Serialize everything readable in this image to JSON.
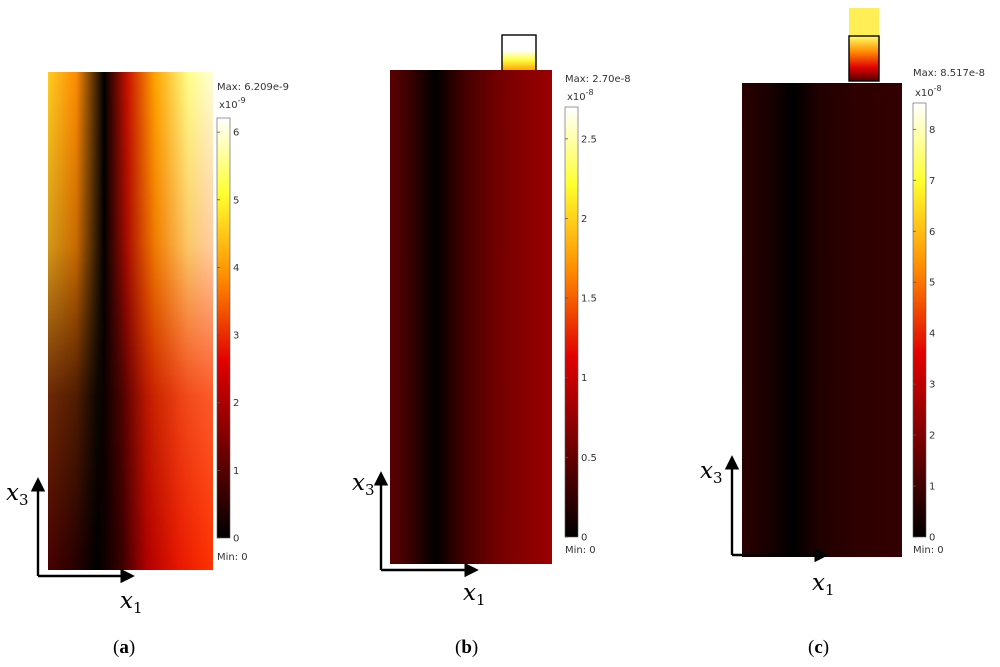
{
  "colormap": [
    "#000000",
    "#8b0000",
    "#ff2a00",
    "#ffa500",
    "#ffff33",
    "#ffffff"
  ],
  "chart_data": [
    {
      "type": "heatmap",
      "colorbar": {
        "max_label": "Max: 6.209e-9",
        "min_label": "Min: 0",
        "exponent_base": "x10",
        "exponent_power": "-9",
        "ticks": [
          "0",
          "1",
          "2",
          "3",
          "4",
          "5",
          "6"
        ],
        "range": [
          0,
          6.209
        ]
      },
      "x_axis": {
        "symbol": "x",
        "subscript": "1"
      },
      "y_axis": {
        "symbol": "x",
        "subscript": "3"
      },
      "caption": {
        "open": "(",
        "letter": "a",
        "close": ")"
      }
    },
    {
      "type": "heatmap",
      "colorbar": {
        "max_label": "Max: 2.70e-8",
        "min_label": "Min: 0",
        "exponent_base": "x10",
        "exponent_power": "-8",
        "ticks": [
          "0",
          "0.5",
          "1",
          "1.5",
          "2",
          "2.5"
        ],
        "range": [
          0,
          2.7
        ]
      },
      "x_axis": {
        "symbol": "x",
        "subscript": "1"
      },
      "y_axis": {
        "symbol": "x",
        "subscript": "3"
      },
      "caption": {
        "open": "(",
        "letter": "b",
        "close": ")"
      }
    },
    {
      "type": "heatmap",
      "colorbar": {
        "max_label": "Max: 8.517e-8",
        "min_label": "Min: 0",
        "exponent_base": "x10",
        "exponent_power": "-8",
        "ticks": [
          "0",
          "1",
          "2",
          "3",
          "4",
          "5",
          "6",
          "7",
          "8"
        ],
        "range": [
          0,
          8.517
        ]
      },
      "x_axis": {
        "symbol": "x",
        "subscript": "1"
      },
      "y_axis": {
        "symbol": "x",
        "subscript": "3"
      },
      "caption": {
        "open": "(",
        "letter": "c",
        "close": ")"
      }
    }
  ]
}
